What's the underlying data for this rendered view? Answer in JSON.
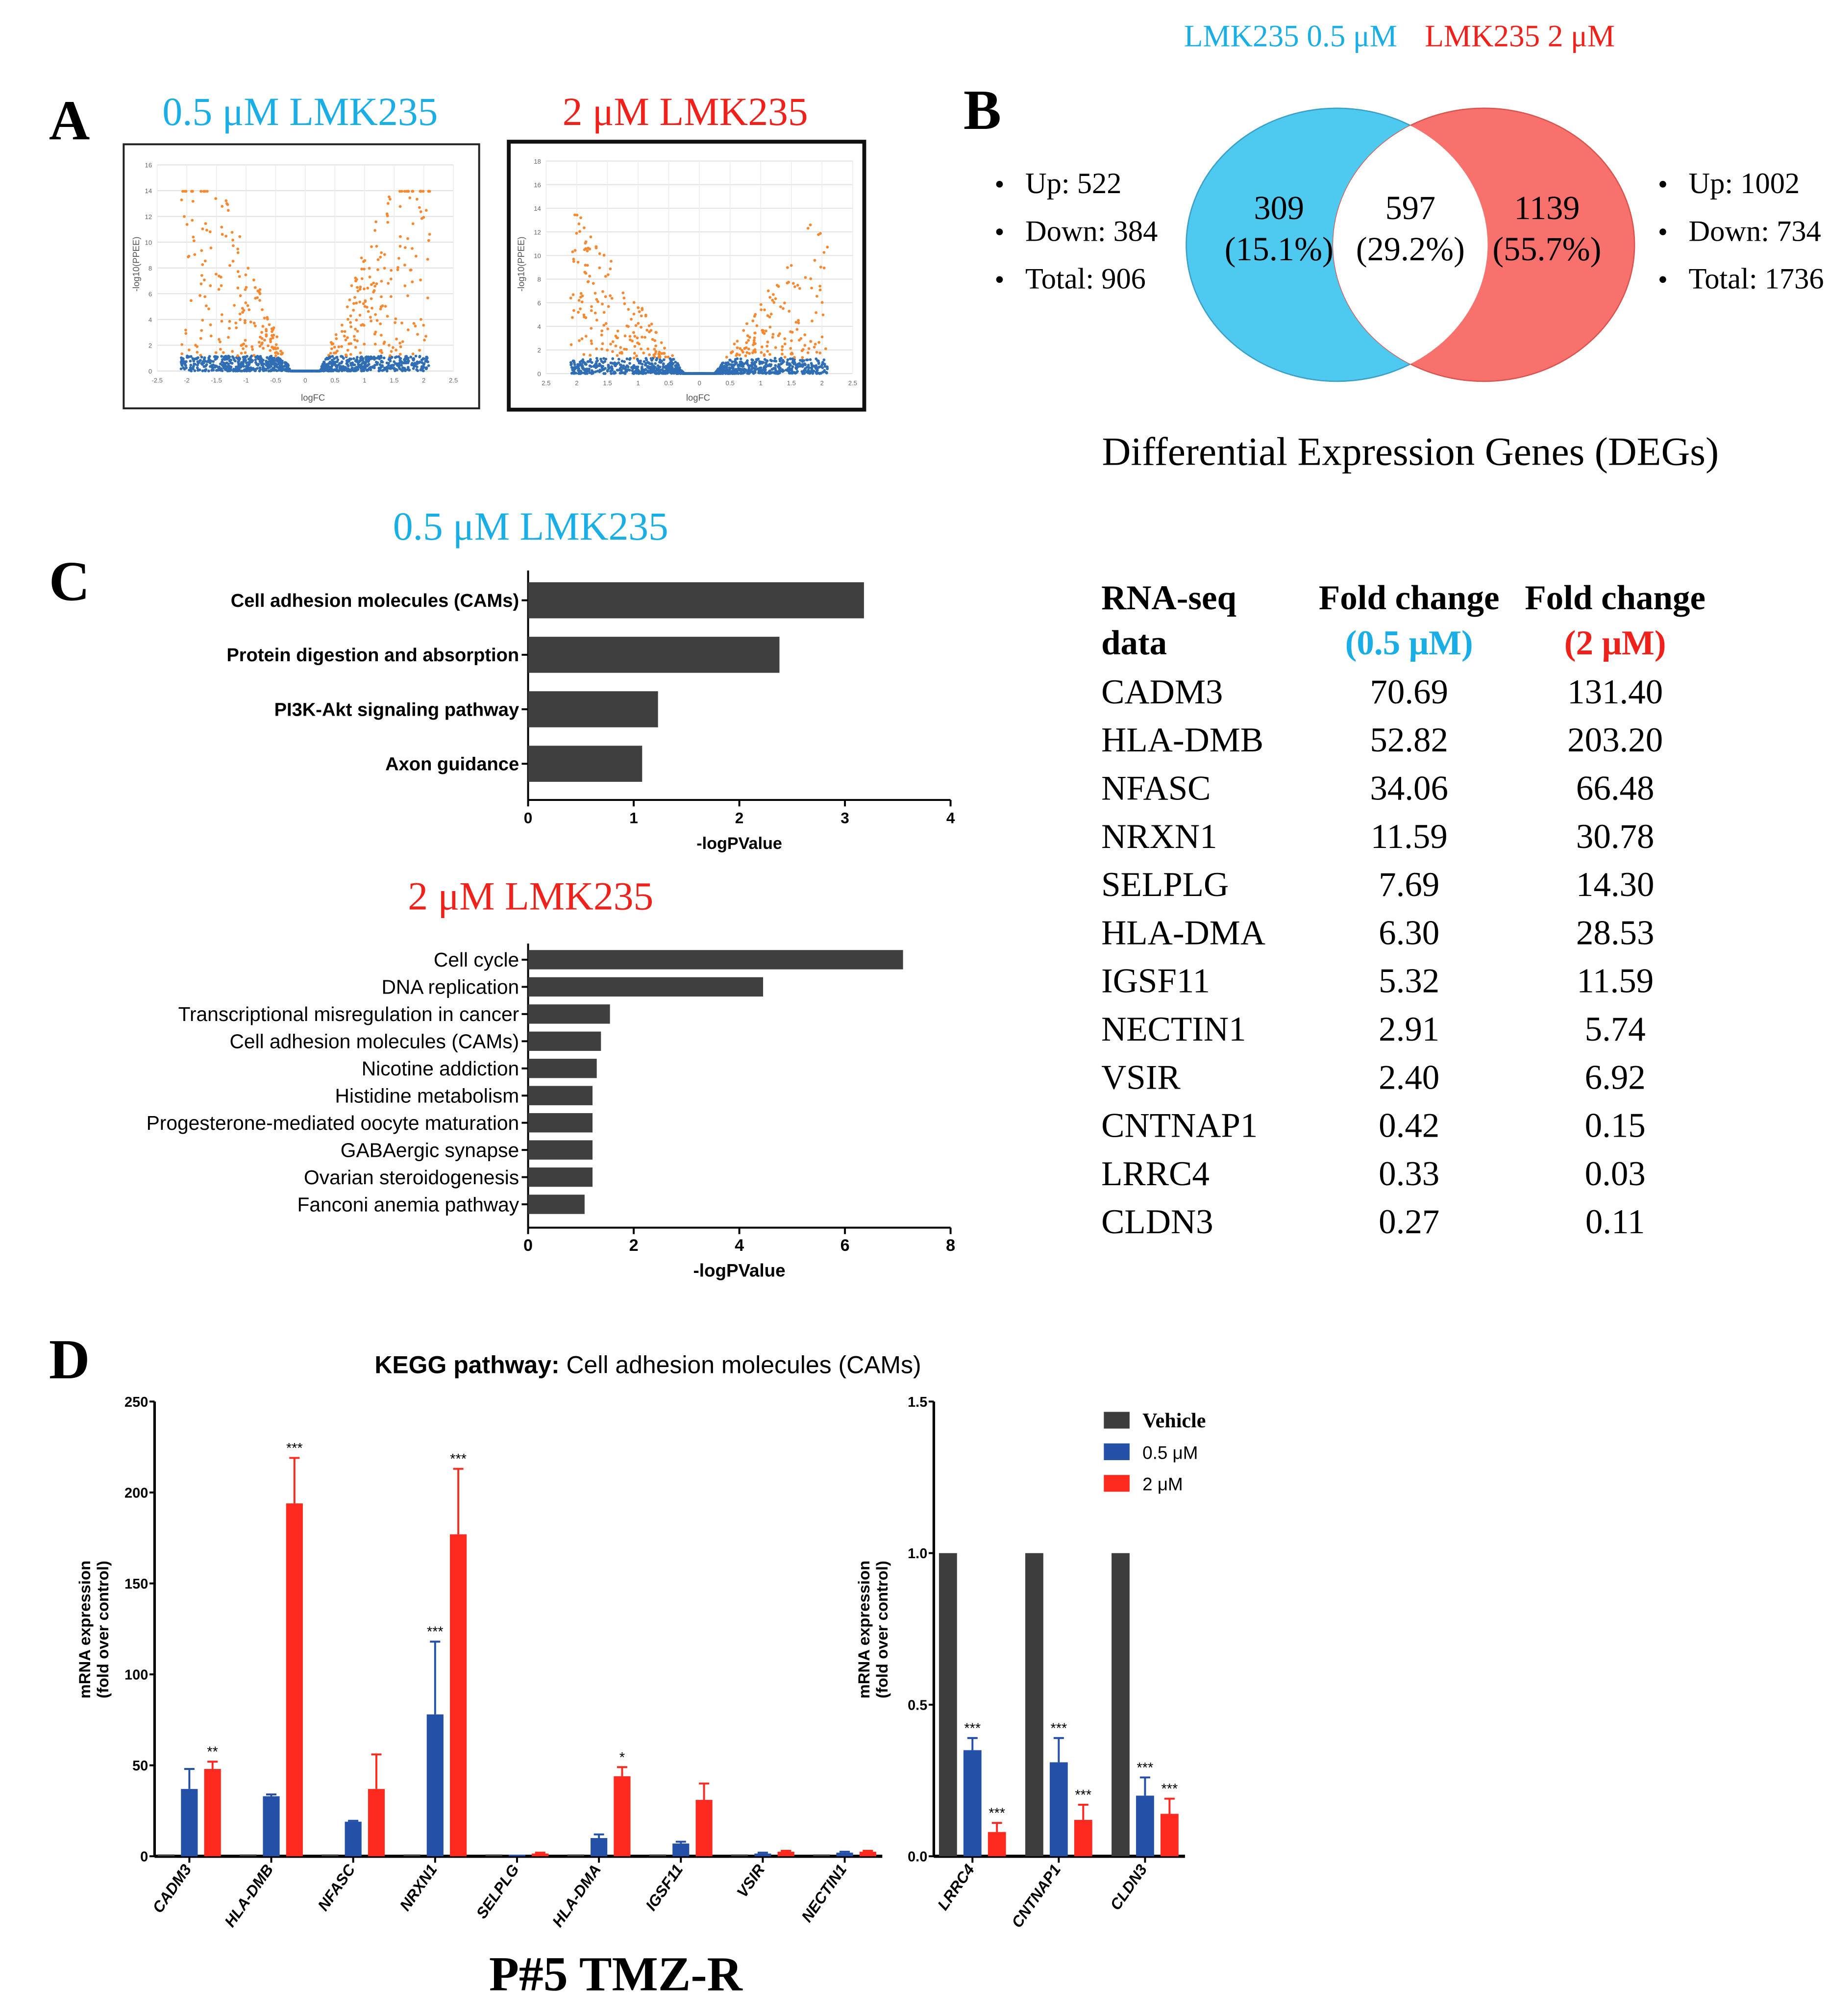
{
  "colors": {
    "cyan": "#1aaee6",
    "red": "#f0201a",
    "venn_cyan": "#4ec9ef",
    "venn_red": "#f8716c",
    "orange": "#f7882f",
    "point_blue": "#2f6db5",
    "bar_dark": "#3d3d3d",
    "bar_blue": "#2450a8",
    "bar_red": "#ff2a1f"
  },
  "panel_a": {
    "label": "A",
    "left_title": "0.5 μM LMK235",
    "right_title": "2 μM LMK235",
    "xlabel": "logFC",
    "ylabel": "-log10(PPEE)",
    "left_xticks": [
      "-2.5",
      "-2",
      "-1.5",
      "-1",
      "-0.5",
      "0",
      "0.5",
      "1",
      "1.5",
      "2",
      "2.5"
    ],
    "left_yticks": [
      "0",
      "2",
      "4",
      "6",
      "8",
      "10",
      "12",
      "14",
      "16"
    ],
    "right_xticks": [
      "2.5",
      "2",
      "1.5",
      "1",
      "0.5",
      "0",
      "0.5",
      "1",
      "1.5",
      "2",
      "2.5"
    ],
    "right_yticks": [
      "0",
      "2",
      "4",
      "6",
      "8",
      "10",
      "12",
      "14",
      "16",
      "18"
    ]
  },
  "panel_b": {
    "label": "B",
    "set_left": "LMK235 0.5 μM",
    "set_right": "LMK235 2 μM",
    "left_only": "309",
    "left_only_pct": "(15.1%)",
    "overlap": "597",
    "overlap_pct": "(29.2%)",
    "right_only": "1139",
    "right_only_pct": "(55.7%)",
    "left_stats": [
      "Up: 522",
      "Down: 384",
      "Total: 906"
    ],
    "right_stats": [
      "Up: 1002",
      "Down: 734",
      "Total: 1736"
    ],
    "caption": "Differential Expression Genes (DEGs)"
  },
  "panel_c": {
    "label": "C",
    "table": {
      "header": [
        [
          "RNA-seq",
          "data"
        ],
        [
          "Fold change",
          "(0.5 μM)"
        ],
        [
          "Fold change",
          "(2 μM)"
        ]
      ],
      "rows": [
        [
          "CADM3",
          "70.69",
          "131.40"
        ],
        [
          "HLA-DMB",
          "52.82",
          "203.20"
        ],
        [
          "NFASC",
          "34.06",
          "66.48"
        ],
        [
          "NRXN1",
          "11.59",
          "30.78"
        ],
        [
          "SELPLG",
          "7.69",
          "14.30"
        ],
        [
          "HLA-DMA",
          "6.30",
          "28.53"
        ],
        [
          "IGSF11",
          "5.32",
          "11.59"
        ],
        [
          "NECTIN1",
          "2.91",
          "5.74"
        ],
        [
          "VSIR",
          "2.40",
          "6.92"
        ],
        [
          "CNTNAP1",
          "0.42",
          "0.15"
        ],
        [
          "LRRC4",
          "0.33",
          "0.03"
        ],
        [
          "CLDN3",
          "0.27",
          "0.11"
        ]
      ]
    }
  },
  "panel_d": {
    "label": "D",
    "title_bold": "KEGG pathway:",
    "title_rest": " Cell adhesion molecules (CAMs)",
    "footer": "P#5 TMZ-R",
    "legend": [
      "Vehicle",
      "0.5 μM",
      "2 μM"
    ]
  },
  "chart_data": [
    {
      "type": "bar",
      "orientation": "horizontal",
      "title": "0.5 μM LMK235",
      "xlabel": "-logPValue",
      "xlim": [
        0,
        4
      ],
      "xticks": [
        "0",
        "1",
        "2",
        "3",
        "4"
      ],
      "categories": [
        "Cell adhesion molecules (CAMs)",
        "Protein digestion and absorption",
        "PI3K-Akt signaling pathway",
        "Axon guidance"
      ],
      "values": [
        3.18,
        2.38,
        1.23,
        1.08
      ]
    },
    {
      "type": "bar",
      "orientation": "horizontal",
      "title": "2 μM LMK235",
      "xlabel": "-logPValue",
      "xlim": [
        0,
        8
      ],
      "xticks": [
        "0",
        "2",
        "4",
        "6",
        "8"
      ],
      "categories": [
        "Cell cycle",
        "DNA replication",
        "Transcriptional misregulation in cancer",
        "Cell adhesion molecules (CAMs)",
        "Nicotine addiction",
        "Histidine metabolism",
        "Progesterone-mediated oocyte maturation",
        "GABAergic synapse",
        "Ovarian steroidogenesis",
        "Fanconi anemia pathway"
      ],
      "values": [
        7.1,
        4.45,
        1.55,
        1.38,
        1.3,
        1.22,
        1.22,
        1.22,
        1.22,
        1.07
      ]
    },
    {
      "type": "bar",
      "ylabel": "mRNA expression (fold over control)",
      "ylim": [
        0,
        250
      ],
      "yticks": [
        "0",
        "50",
        "100",
        "150",
        "200",
        "250"
      ],
      "categories": [
        "CADM3",
        "HLA-DMB",
        "NFASC",
        "NRXN1",
        "SELPLG",
        "HLA-DMA",
        "IGSF11",
        "VSIR",
        "NECTIN1"
      ],
      "series": [
        {
          "name": "Vehicle",
          "values": [
            1,
            1,
            1,
            1,
            1,
            1,
            1,
            1,
            1
          ],
          "errors": [
            0,
            0,
            0,
            0,
            0,
            0,
            0,
            0,
            0
          ],
          "sig": [
            "",
            "",
            "",
            "",
            "",
            "",
            "",
            "",
            ""
          ]
        },
        {
          "name": "0.5 μM",
          "values": [
            37,
            33,
            19,
            78,
            0.8,
            10,
            7,
            1.5,
            2
          ],
          "errors": [
            11,
            1,
            0.5,
            40,
            0,
            2,
            1,
            0.5,
            0.5
          ],
          "sig": [
            "",
            "",
            "",
            "***",
            "",
            "",
            "",
            "",
            ""
          ]
        },
        {
          "name": "2 μM",
          "values": [
            48,
            194,
            37,
            177,
            1.5,
            44,
            31,
            2.5,
            2.5
          ],
          "errors": [
            4,
            25,
            19,
            36,
            0.5,
            5,
            9,
            0.5,
            0.5
          ],
          "sig": [
            "**",
            "***",
            "",
            "***",
            "",
            "*",
            "",
            "",
            ""
          ]
        }
      ]
    },
    {
      "type": "bar",
      "ylabel": "mRNA expression (fold over control)",
      "ylim": [
        0,
        1.5
      ],
      "yticks": [
        "0.0",
        "0.5",
        "1.0",
        "1.5"
      ],
      "categories": [
        "LRRC4",
        "CNTNAP1",
        "CLDN3"
      ],
      "series": [
        {
          "name": "Vehicle",
          "values": [
            1,
            1,
            1
          ],
          "errors": [
            0,
            0,
            0
          ],
          "sig": [
            "",
            "",
            ""
          ]
        },
        {
          "name": "0.5 μM",
          "values": [
            0.35,
            0.31,
            0.2
          ],
          "errors": [
            0.04,
            0.08,
            0.06
          ],
          "sig": [
            "***",
            "***",
            "***"
          ]
        },
        {
          "name": "2 μM",
          "values": [
            0.08,
            0.12,
            0.14
          ],
          "errors": [
            0.03,
            0.05,
            0.05
          ],
          "sig": [
            "***",
            "***",
            "***"
          ]
        }
      ]
    }
  ]
}
